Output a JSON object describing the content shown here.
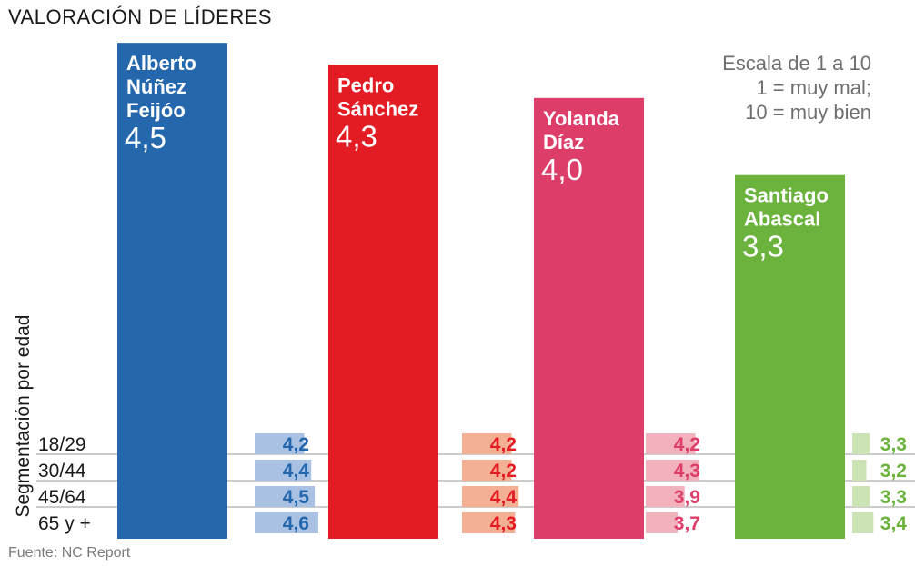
{
  "title": "VALORACIÓN DE LÍDERES",
  "scale_note": [
    "Escala de 1 a 10",
    "1 = muy mal;",
    "10 = muy bien"
  ],
  "segment_label": "Segmentación por edad",
  "source": "Fuente: NC Report",
  "chart_data": {
    "type": "bar",
    "title": "VALORACIÓN DE LÍDERES",
    "xlabel": "",
    "ylabel": "",
    "ylim": [
      0,
      10
    ],
    "categories": [
      "Alberto Núñez Feijóo",
      "Pedro Sánchez",
      "Yolanda Díaz",
      "Santiago Abascal"
    ],
    "name_lines": [
      [
        "Alberto",
        "Núñez",
        "Feijóo"
      ],
      [
        "Pedro",
        "Sánchez"
      ],
      [
        "Yolanda",
        "Díaz"
      ],
      [
        "Santiago",
        "Abascal"
      ]
    ],
    "values": [
      4.5,
      4.3,
      4.0,
      3.3
    ],
    "value_labels": [
      "4,5",
      "4,3",
      "4,0",
      "3,3"
    ],
    "colors": [
      "#2467ad",
      "#e31b23",
      "#dd3d69",
      "#6cb33e"
    ],
    "segment_colors": [
      "#a9c2e4",
      "#f3b094",
      "#f1b2bd",
      "#cbe3b5"
    ],
    "age_groups": [
      "18/29",
      "30/44",
      "45/64",
      "65 y +"
    ],
    "segments": [
      {
        "leader": "Alberto Núñez Feijóo",
        "values": [
          4.2,
          4.4,
          4.5,
          4.6
        ],
        "labels": [
          "4,2",
          "4,4",
          "4,5",
          "4,6"
        ]
      },
      {
        "leader": "Pedro Sánchez",
        "values": [
          4.2,
          4.2,
          4.4,
          4.3
        ],
        "labels": [
          "4,2",
          "4,2",
          "4,4",
          "4,3"
        ]
      },
      {
        "leader": "Yolanda Díaz",
        "values": [
          4.2,
          4.3,
          3.9,
          3.7
        ],
        "labels": [
          "4,2",
          "4,3",
          "3,9",
          "3,7"
        ]
      },
      {
        "leader": "Santiago Abascal",
        "values": [
          3.3,
          3.2,
          3.3,
          3.4
        ],
        "labels": [
          "3,3",
          "3,2",
          "3,3",
          "3,4"
        ]
      }
    ]
  }
}
